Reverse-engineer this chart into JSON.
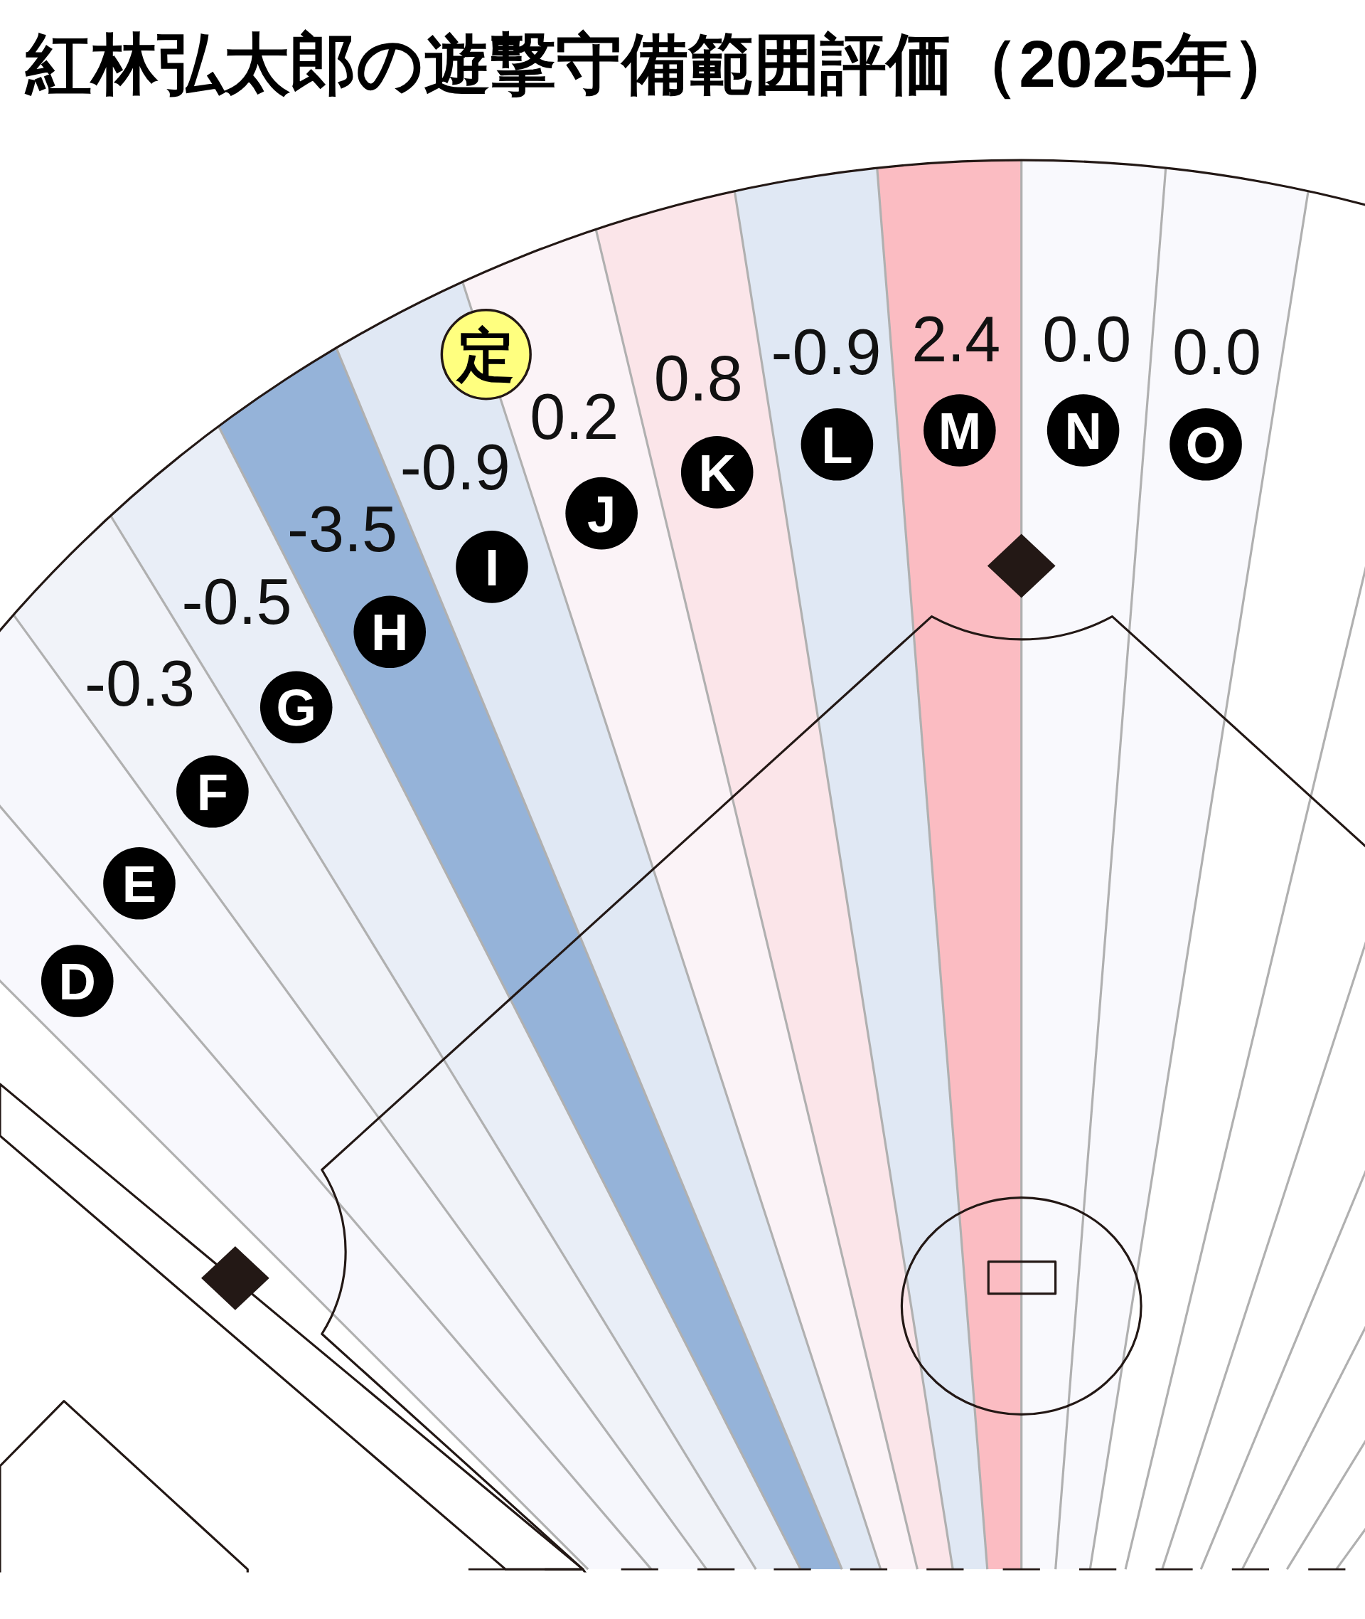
{
  "chart_data": {
    "type": "other",
    "title": "紅林弘太郎の遊撃守備範囲評価（2025年）",
    "categories": [
      "D",
      "E",
      "F",
      "G",
      "H",
      "I",
      "J",
      "K",
      "L",
      "M",
      "N",
      "O"
    ],
    "values": [
      null,
      null,
      -0.3,
      -0.5,
      -3.5,
      -0.9,
      0.2,
      0.8,
      -0.9,
      2.4,
      0.0,
      0.0
    ],
    "value_labels": [
      null,
      null,
      "-0.3",
      "-0.5",
      "-3.5",
      "-0.9",
      "0.2",
      "0.8",
      "-0.9",
      "2.4",
      "0.0",
      "0.0"
    ],
    "colors": [
      "#f8f8fd",
      "#f6f7fc",
      "#f1f3f9",
      "#e9eef7",
      "#95b3d9",
      "#e0e8f4",
      "#fbf3f7",
      "#fbe5e9",
      "#e0e8f4",
      "#fbbcc2",
      "#f9f9fd",
      "#f9f9fd"
    ],
    "annotations": [
      {
        "text": "定",
        "x": "I"
      }
    ]
  }
}
